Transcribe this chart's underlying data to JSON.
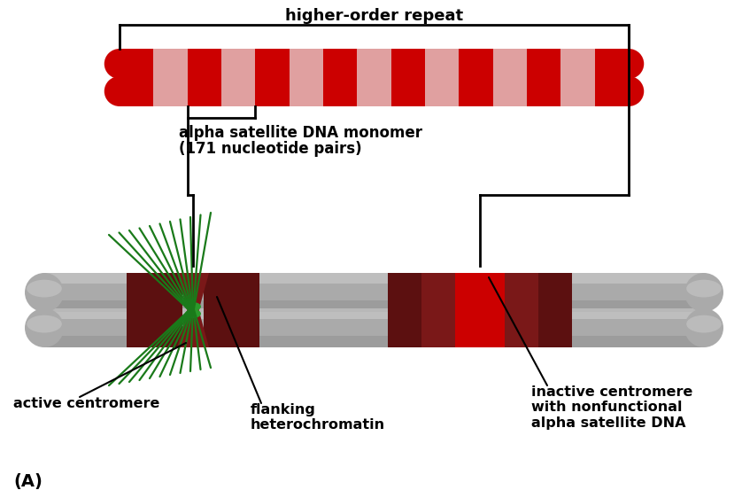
{
  "bg_color": "#ffffff",
  "text_color": "#000000",
  "stripe_dark": "#cc0000",
  "stripe_light": "#e8aaaa",
  "stripe_mid": "#d96060",
  "brown_dark": "#5c1010",
  "brown_med": "#7a1818",
  "active_red": "#cc0000",
  "inactive_red": "#cc0000",
  "green_fiber": "#1a7a1a",
  "green_disk": "#2a9a2a",
  "gray_main": "#aaaaaa",
  "gray_highlight": "#cccccc",
  "gray_shadow": "#888888",
  "higher_order_text": "higher-order repeat",
  "monomer_text_line1": "alpha satellite DNA monomer",
  "monomer_text_line2": "(171 nucleotide pairs)",
  "active_label": "active centromere",
  "flanking_label": "flanking\nheterochromatin",
  "inactive_label": "inactive centromere\nwith nonfunctional\nalpha satellite DNA",
  "panel_label": "(A)",
  "label_fontsize": 11.5,
  "title_fontsize": 13
}
